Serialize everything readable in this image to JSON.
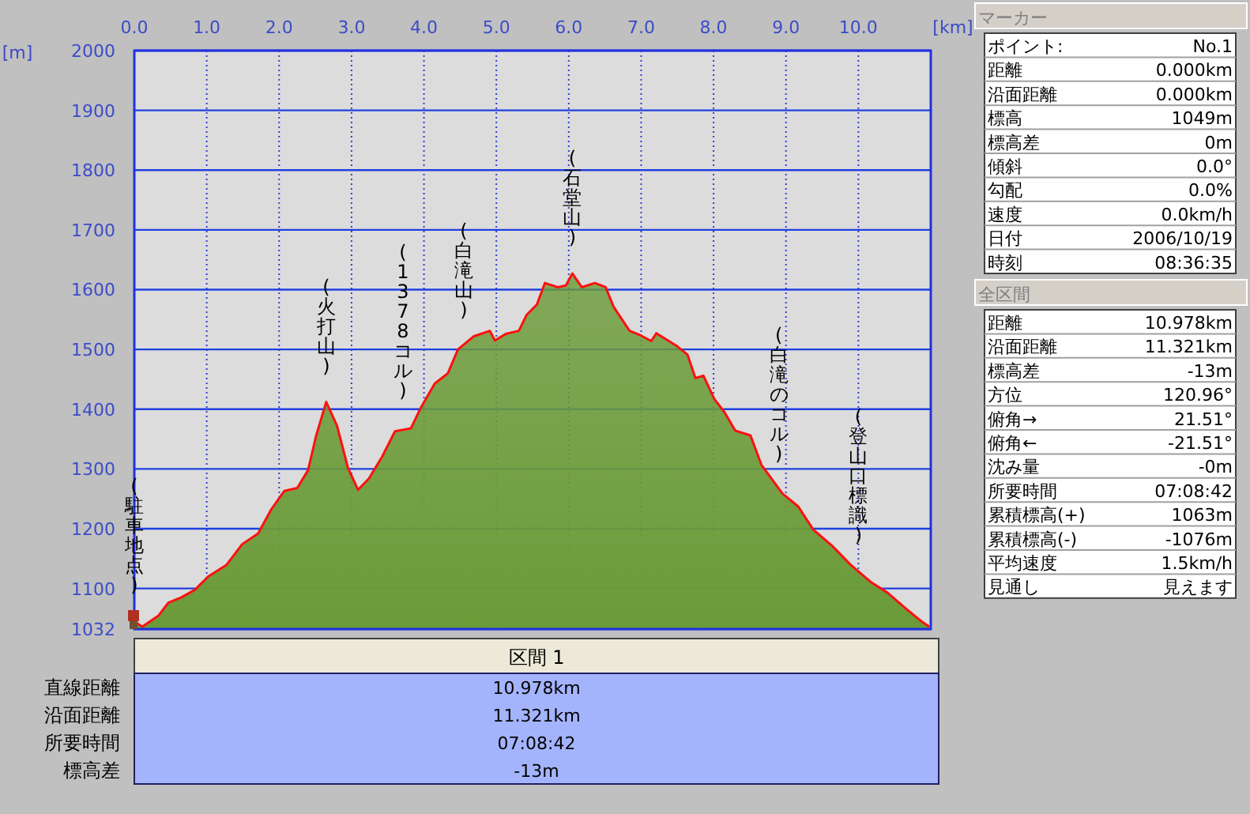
{
  "chart_data": [
    {
      "type": "area",
      "xlabel": "[km]",
      "ylabel": "[m]",
      "xlim": [
        0,
        11
      ],
      "ylim": [
        1032,
        2000
      ],
      "xticks": [
        {
          "value": 0,
          "label": "0.0"
        },
        {
          "value": 1,
          "label": "1.0"
        },
        {
          "value": 2,
          "label": "2.0"
        },
        {
          "value": 3,
          "label": "3.0"
        },
        {
          "value": 4,
          "label": "4.0"
        },
        {
          "value": 5,
          "label": "5.0"
        },
        {
          "value": 6,
          "label": "6.0"
        },
        {
          "value": 7,
          "label": "7.0"
        },
        {
          "value": 8,
          "label": "8.0"
        },
        {
          "value": 9,
          "label": "9.0"
        },
        {
          "value": 10,
          "label": "10.0"
        }
      ],
      "yticks": [
        1032,
        1100,
        1200,
        1300,
        1400,
        1500,
        1600,
        1700,
        1800,
        1900,
        2000
      ],
      "grid": true,
      "series": [
        {
          "color": "#6b9b38",
          "x": [
            0,
            0.11,
            0.33,
            0.47,
            0.65,
            0.84,
            1.02,
            1.27,
            1.49,
            1.71,
            1.89,
            2.07,
            2.25,
            2.4,
            2.51,
            2.65,
            2.8,
            2.95,
            3.09,
            3.24,
            3.42,
            3.6,
            3.82,
            3.96,
            4.15,
            4.33,
            4.47,
            4.69,
            4.91,
            4.98,
            5.13,
            5.31,
            5.42,
            5.56,
            5.67,
            5.85,
            5.96,
            6.05,
            6.18,
            6.36,
            6.51,
            6.62,
            6.84,
            7.0,
            7.14,
            7.21,
            7.5,
            7.64,
            7.75,
            7.86,
            8.01,
            8.15,
            8.3,
            8.51,
            8.66,
            8.95,
            9.17,
            9.38,
            9.64,
            9.89,
            10.18,
            10.4,
            10.65,
            10.87,
            10.98
          ],
          "values": [
            1045,
            1036,
            1054,
            1076,
            1085,
            1098,
            1120,
            1139,
            1174,
            1192,
            1232,
            1263,
            1268,
            1298,
            1355,
            1412,
            1372,
            1302,
            1265,
            1284,
            1320,
            1363,
            1368,
            1403,
            1443,
            1460,
            1500,
            1522,
            1531,
            1515,
            1526,
            1531,
            1558,
            1575,
            1611,
            1604,
            1607,
            1627,
            1604,
            1611,
            1604,
            1571,
            1531,
            1523,
            1514,
            1527,
            1505,
            1491,
            1452,
            1456,
            1417,
            1395,
            1364,
            1356,
            1307,
            1259,
            1237,
            1198,
            1171,
            1140,
            1110,
            1093,
            1067,
            1045,
            1036
          ]
        }
      ],
      "annotations": [
        {
          "text": "(駐車地点)",
          "x": 0,
          "y": 1045
        },
        {
          "text": "(火打山)",
          "x": 2.65,
          "y": 1412
        },
        {
          "text": "(1378コル)",
          "x": 3.71,
          "y": 1370
        },
        {
          "text": "(白滝山)",
          "x": 4.55,
          "y": 1505
        },
        {
          "text": "(石堂山)",
          "x": 6.05,
          "y": 1627
        },
        {
          "text": "(白滝のコル)",
          "x": 8.9,
          "y": 1265
        },
        {
          "text": "(登山口標識)",
          "x": 10.0,
          "y": 1129
        }
      ]
    },
    {
      "type": "other",
      "title": "マーカー",
      "annotations": [
        "ポイント:",
        "No.1",
        "距離",
        "0.000km",
        "沿面距離",
        "0.000km",
        "標高",
        "1049m",
        "標高差",
        "0m",
        "傾斜",
        "0.0°",
        "勾配",
        "0.0%",
        "速度",
        "0.0km/h",
        "日付",
        "2006/10/19",
        "時刻",
        "08:36:35"
      ]
    },
    {
      "type": "other",
      "title": "全区間",
      "annotations": [
        "距離",
        "10.978km",
        "沿面距離",
        "11.321km",
        "標高差",
        "-13m",
        "方位",
        "120.96°",
        "俯角→",
        "21.51°",
        "俯角←",
        "-21.51°",
        "沈み量",
        "-0m",
        "所要時間",
        "07:08:42",
        "累積標高(+)",
        "1063m",
        "累積標高(-)",
        "-1076m",
        "平均速度",
        "1.5km/h",
        "見通し",
        "見えます"
      ]
    },
    {
      "type": "other",
      "title": "区間 1",
      "annotations": [
        "直線距離",
        "10.978km",
        "沿面距離",
        "11.321km",
        "所要時間",
        "07:08:42",
        "標高差",
        "-13m"
      ]
    }
  ]
}
